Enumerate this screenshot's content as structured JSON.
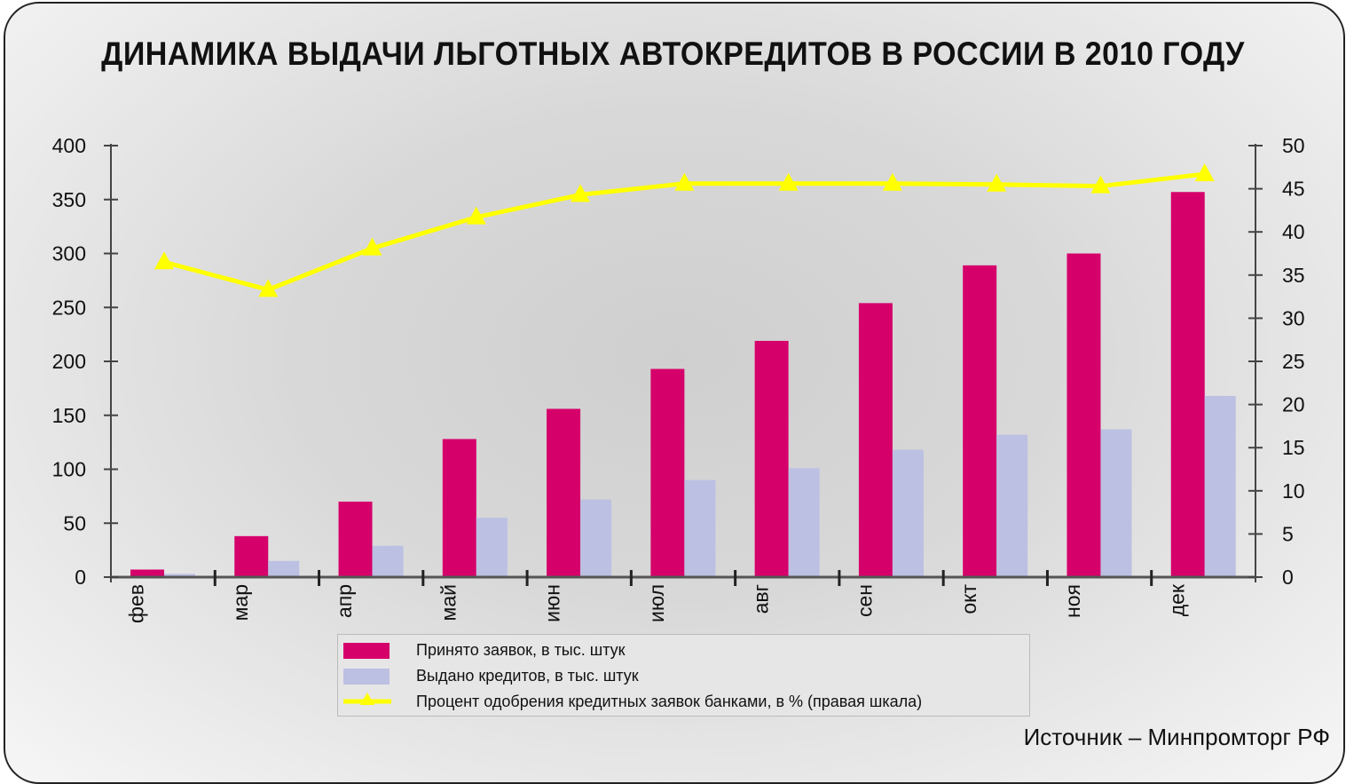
{
  "chart_data": {
    "type": "bar",
    "title": "ДИНАМИКА ВЫДАЧИ ЛЬГОТНЫХ АВТОКРЕДИТОВ В РОССИИ В 2010 ГОДУ",
    "categories": [
      "фев",
      "мар",
      "апр",
      "май",
      "июн",
      "июл",
      "авг",
      "сен",
      "окт",
      "ноя",
      "дек"
    ],
    "series": [
      {
        "name": "Принято заявок, в тыс. штук",
        "type": "bar",
        "axis": "left",
        "color": "#d6006b",
        "values": [
          7,
          38,
          70,
          128,
          156,
          193,
          219,
          254,
          289,
          300,
          357
        ]
      },
      {
        "name": "Выдано кредитов, в тыс. штук",
        "type": "bar",
        "axis": "left",
        "color": "#bcc0e2",
        "values": [
          3,
          15,
          29,
          55,
          72,
          90,
          101,
          118,
          132,
          137,
          168
        ]
      },
      {
        "name": "Процент одобрения кредитных заявок банками, в % (правая шкала)",
        "type": "line",
        "axis": "right",
        "color": "#ffff00",
        "values": [
          36.5,
          33.3,
          38.1,
          41.7,
          44.3,
          45.6,
          45.6,
          45.6,
          45.5,
          45.3,
          46.7
        ]
      }
    ],
    "left_axis": {
      "ylim": [
        0,
        400
      ],
      "ticks": [
        0,
        50,
        100,
        150,
        200,
        250,
        300,
        350,
        400
      ]
    },
    "right_axis": {
      "ylim": [
        0,
        50
      ],
      "ticks": [
        0,
        5,
        10,
        15,
        20,
        25,
        30,
        35,
        40,
        45,
        50
      ]
    },
    "grid": false,
    "legend_position": "bottom"
  },
  "source": "Источник – Минпромторг РФ"
}
